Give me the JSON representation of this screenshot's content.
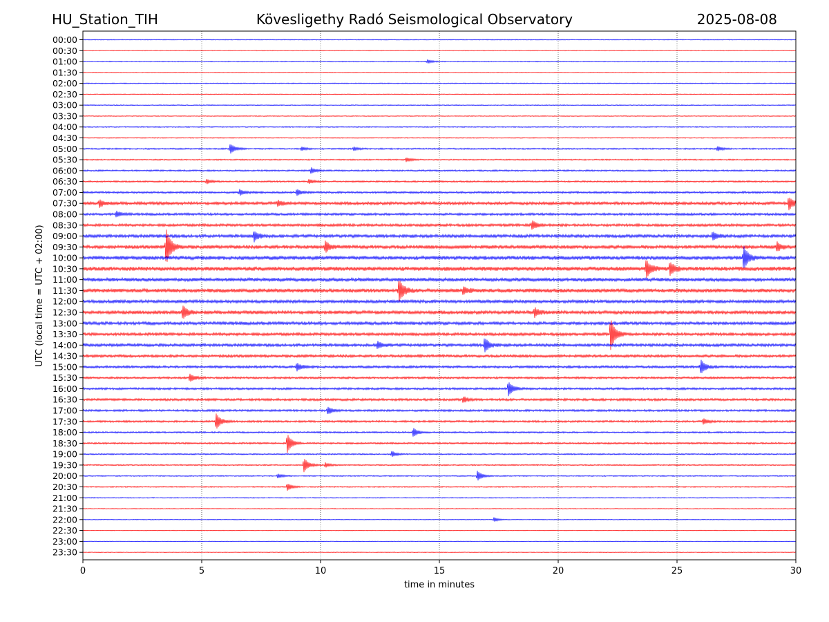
{
  "header": {
    "station": "HU_Station_TIH",
    "title": "Kövesligethy Radó Seismological Observatory",
    "date": "2025-08-08"
  },
  "chart_data": {
    "type": "line",
    "subtype": "helicorder",
    "xlabel": "time in minutes",
    "ylabel": "UTC (local time = UTC + 02:00)",
    "xlim": [
      0,
      30
    ],
    "xticks": [
      0,
      5,
      10,
      15,
      20,
      25,
      30
    ],
    "grid": "vertical dotted lines at 5-minute ticks",
    "colors": {
      "even_rows": "#0000ff",
      "odd_rows": "#ff0000"
    },
    "rows": [
      "00:00",
      "00:30",
      "01:00",
      "01:30",
      "02:00",
      "02:30",
      "03:00",
      "03:30",
      "04:00",
      "04:30",
      "05:00",
      "05:30",
      "06:00",
      "06:30",
      "07:00",
      "07:30",
      "08:00",
      "08:30",
      "09:00",
      "09:30",
      "10:00",
      "10:30",
      "11:00",
      "11:30",
      "12:00",
      "12:30",
      "13:00",
      "13:30",
      "14:00",
      "14:30",
      "15:00",
      "15:30",
      "16:00",
      "16:30",
      "17:00",
      "17:30",
      "18:00",
      "18:30",
      "19:00",
      "19:30",
      "20:00",
      "20:30",
      "21:00",
      "21:30",
      "22:00",
      "22:30",
      "23:00",
      "23:30"
    ],
    "noise_level": [
      0.6,
      0.5,
      0.7,
      0.5,
      0.7,
      0.6,
      0.7,
      0.6,
      0.8,
      0.7,
      1.1,
      1.0,
      1.2,
      1.2,
      1.5,
      2.2,
      1.8,
      2.0,
      2.4,
      2.6,
      2.8,
      3.0,
      2.6,
      2.8,
      2.4,
      2.6,
      2.4,
      2.2,
      2.2,
      2.0,
      1.8,
      1.6,
      1.6,
      1.8,
      1.6,
      1.5,
      1.2,
      1.3,
      1.0,
      1.0,
      0.9,
      0.9,
      0.7,
      0.6,
      0.6,
      0.5,
      0.5,
      0.5
    ],
    "events": [
      {
        "row": "01:00",
        "minute": 14.5,
        "amplitude": 2.5
      },
      {
        "row": "05:00",
        "minute": 6.2,
        "amplitude": 7
      },
      {
        "row": "05:00",
        "minute": 9.2,
        "amplitude": 2.5
      },
      {
        "row": "05:00",
        "minute": 11.4,
        "amplitude": 2.5
      },
      {
        "row": "05:00",
        "minute": 26.7,
        "amplitude": 3
      },
      {
        "row": "05:30",
        "minute": 13.6,
        "amplitude": 3
      },
      {
        "row": "06:00",
        "minute": 9.6,
        "amplitude": 4
      },
      {
        "row": "06:30",
        "minute": 5.2,
        "amplitude": 3
      },
      {
        "row": "06:30",
        "minute": 9.5,
        "amplitude": 3
      },
      {
        "row": "07:00",
        "minute": 6.6,
        "amplitude": 4
      },
      {
        "row": "07:00",
        "minute": 9.0,
        "amplitude": 4
      },
      {
        "row": "07:30",
        "minute": 0.7,
        "amplitude": 5
      },
      {
        "row": "07:30",
        "minute": 8.2,
        "amplitude": 4
      },
      {
        "row": "07:30",
        "minute": 29.7,
        "amplitude": 9
      },
      {
        "row": "08:00",
        "minute": 1.4,
        "amplitude": 4
      },
      {
        "row": "08:30",
        "minute": 18.9,
        "amplitude": 6
      },
      {
        "row": "09:00",
        "minute": 7.2,
        "amplitude": 7
      },
      {
        "row": "09:00",
        "minute": 26.5,
        "amplitude": 5
      },
      {
        "row": "09:30",
        "minute": 3.5,
        "amplitude": 25
      },
      {
        "row": "09:30",
        "minute": 10.2,
        "amplitude": 7
      },
      {
        "row": "09:30",
        "minute": 29.2,
        "amplitude": 6
      },
      {
        "row": "10:00",
        "minute": 27.8,
        "amplitude": 16
      },
      {
        "row": "10:30",
        "minute": 23.7,
        "amplitude": 12
      },
      {
        "row": "10:30",
        "minute": 24.7,
        "amplitude": 9
      },
      {
        "row": "11:30",
        "minute": 13.3,
        "amplitude": 16
      },
      {
        "row": "11:30",
        "minute": 16.0,
        "amplitude": 5
      },
      {
        "row": "12:30",
        "minute": 4.2,
        "amplitude": 9
      },
      {
        "row": "12:30",
        "minute": 19.0,
        "amplitude": 6
      },
      {
        "row": "13:30",
        "minute": 22.2,
        "amplitude": 22
      },
      {
        "row": "14:00",
        "minute": 12.4,
        "amplitude": 5
      },
      {
        "row": "14:00",
        "minute": 16.9,
        "amplitude": 10
      },
      {
        "row": "15:00",
        "minute": 9.0,
        "amplitude": 5
      },
      {
        "row": "15:00",
        "minute": 26.0,
        "amplitude": 10
      },
      {
        "row": "15:30",
        "minute": 4.5,
        "amplitude": 5
      },
      {
        "row": "16:00",
        "minute": 17.9,
        "amplitude": 10
      },
      {
        "row": "16:30",
        "minute": 16.0,
        "amplitude": 4
      },
      {
        "row": "17:00",
        "minute": 10.3,
        "amplitude": 5
      },
      {
        "row": "17:30",
        "minute": 5.6,
        "amplitude": 11
      },
      {
        "row": "17:30",
        "minute": 26.1,
        "amplitude": 4
      },
      {
        "row": "18:00",
        "minute": 13.9,
        "amplitude": 6
      },
      {
        "row": "18:30",
        "minute": 8.6,
        "amplitude": 13
      },
      {
        "row": "19:00",
        "minute": 13.0,
        "amplitude": 4
      },
      {
        "row": "19:30",
        "minute": 9.3,
        "amplitude": 10
      },
      {
        "row": "19:30",
        "minute": 10.2,
        "amplitude": 3
      },
      {
        "row": "20:00",
        "minute": 8.2,
        "amplitude": 3
      },
      {
        "row": "20:00",
        "minute": 16.6,
        "amplitude": 7
      },
      {
        "row": "20:30",
        "minute": 8.6,
        "amplitude": 5
      },
      {
        "row": "22:00",
        "minute": 17.3,
        "amplitude": 3
      }
    ]
  }
}
